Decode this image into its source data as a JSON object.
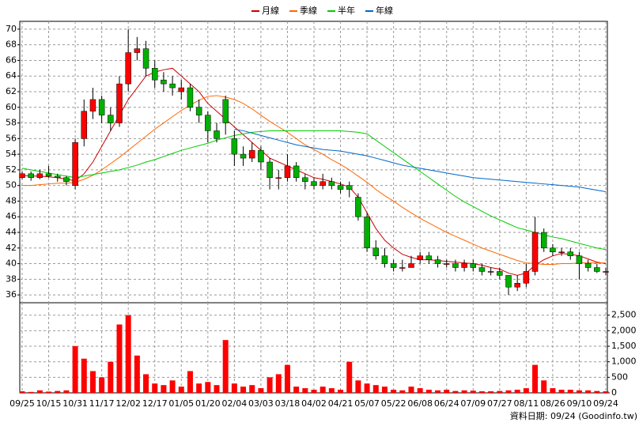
{
  "chart_data": [
    {
      "type": "candlestick",
      "categories": [
        "09/25",
        null,
        null,
        "10/15",
        null,
        null,
        "10/31",
        null,
        null,
        "11/17",
        null,
        null,
        "12/02",
        null,
        null,
        "12/17",
        null,
        null,
        "01/05",
        null,
        null,
        "01/20",
        null,
        null,
        "02/04",
        null,
        null,
        "03/03",
        null,
        null,
        "03/18",
        null,
        null,
        "04/02",
        null,
        null,
        "04/21",
        null,
        null,
        "05/07",
        null,
        null,
        "05/22",
        null,
        null,
        "06/08",
        null,
        null,
        "06/24",
        null,
        null,
        "07/09",
        null,
        null,
        "07/27",
        null,
        null,
        "08/11",
        null,
        null,
        "08/26",
        null,
        null,
        "09/10",
        null,
        null,
        "09/24"
      ],
      "open": [
        51,
        51.5,
        51,
        51.5,
        51.2,
        51,
        50,
        56,
        59.5,
        61,
        59,
        58,
        63,
        67,
        67.5,
        65,
        63.5,
        63,
        62,
        62.5,
        60,
        59,
        57,
        61,
        56,
        54,
        53.5,
        54.5,
        53,
        51,
        51,
        52.5,
        51,
        50.5,
        50,
        50.5,
        50,
        50,
        48.5,
        46,
        42,
        41,
        40,
        39.5,
        39.5,
        40.5,
        41,
        40.5,
        40,
        40,
        39.5,
        40,
        39.5,
        39,
        39,
        38.5,
        37,
        37.5,
        39,
        44,
        42,
        41.5,
        41.5,
        41,
        40,
        39.5,
        39
      ],
      "high": [
        51.8,
        51.8,
        52,
        52.5,
        51.5,
        51.2,
        56,
        61,
        62.5,
        61.5,
        60,
        64,
        70,
        69,
        68.5,
        66,
        64.5,
        64,
        63.5,
        63,
        61,
        59.5,
        58,
        61.5,
        57,
        55,
        55.5,
        55,
        53.5,
        52,
        54,
        53,
        51.5,
        51,
        51.5,
        51,
        50.5,
        50.5,
        49,
        46.5,
        43,
        42,
        40.5,
        40.5,
        41,
        41.5,
        41.5,
        41,
        40.5,
        40.5,
        40.5,
        40.5,
        40,
        39.5,
        39.5,
        38.5,
        38.5,
        40,
        46,
        44.5,
        42.5,
        42,
        42,
        41.5,
        40.5,
        40,
        39.5
      ],
      "low": [
        50.8,
        50.6,
        50.8,
        51,
        50.5,
        50,
        49.5,
        55,
        58.5,
        58,
        57,
        57.5,
        62,
        66,
        64,
        62.5,
        62,
        61.5,
        61,
        59.5,
        58,
        55.5,
        55.5,
        56.5,
        52.5,
        52.5,
        53,
        52,
        49.5,
        49.5,
        50.5,
        50.5,
        49.5,
        49.5,
        49.5,
        49.5,
        49,
        48.5,
        45.5,
        41.5,
        40.5,
        39.5,
        39,
        39,
        39.5,
        40,
        40,
        39.5,
        39.5,
        39,
        39,
        39,
        38.5,
        38.5,
        38,
        36,
        36.5,
        37,
        38.5,
        41.5,
        41,
        41,
        40.5,
        38,
        39,
        38.8,
        38.5
      ],
      "close": [
        51.5,
        51,
        51.5,
        51.2,
        51,
        50.5,
        55.5,
        59.5,
        61,
        59,
        58,
        63,
        67,
        67.5,
        65,
        63.5,
        63,
        62.5,
        62.5,
        60,
        59,
        57,
        56,
        58,
        54,
        53.5,
        54.5,
        53,
        51,
        51,
        52.5,
        51,
        50.5,
        50,
        50.5,
        50,
        49.5,
        49.5,
        46,
        42,
        41,
        40,
        39.5,
        39.5,
        40,
        41,
        40.5,
        40,
        40,
        39.5,
        40,
        39.5,
        39,
        39,
        38.5,
        37,
        37.5,
        39,
        44,
        42,
        41.5,
        41.5,
        41,
        40,
        39.5,
        39,
        39
      ],
      "up_color": "#ff0000",
      "down_color": "#00b000",
      "ylim": [
        35,
        71
      ],
      "yticks": [
        36,
        38,
        40,
        42,
        44,
        46,
        48,
        50,
        52,
        54,
        56,
        58,
        60,
        62,
        64,
        66,
        68,
        70
      ],
      "grid": true,
      "series": [
        {
          "name": "月線",
          "color": "#cc0000",
          "values": [
            51.3,
            51.2,
            51.2,
            51.1,
            51,
            50.8,
            50.6,
            51.5,
            53,
            55,
            57,
            59,
            61,
            62.5,
            64,
            64.5,
            64.8,
            65,
            64,
            63,
            62,
            60.5,
            59.5,
            58.5,
            57.5,
            56.5,
            55.5,
            54.5,
            53.5,
            53,
            52.5,
            52,
            51.5,
            51,
            50.8,
            50.5,
            50.2,
            49.8,
            48.5,
            46.5,
            44.5,
            43,
            42,
            41.2,
            40.8,
            40.5,
            40.5,
            40.4,
            40.3,
            40.2,
            40.1,
            40,
            39.8,
            39.5,
            39.3,
            38.8,
            38.5,
            38.8,
            39.8,
            40.5,
            41,
            41.3,
            41.2,
            41,
            40.6,
            40.2,
            40
          ]
        },
        {
          "name": "季線",
          "color": "#ff6600",
          "values": [
            50,
            50,
            50.1,
            50.2,
            50.3,
            50.3,
            50.4,
            50.8,
            51.3,
            52,
            52.8,
            53.6,
            54.5,
            55.4,
            56.3,
            57.2,
            58,
            58.8,
            59.6,
            60.3,
            60.9,
            61.4,
            61.5,
            61.3,
            61,
            60.5,
            59.8,
            59,
            58.2,
            57.5,
            56.8,
            56,
            55.2,
            54.6,
            54,
            53.3,
            52.7,
            52,
            51.2,
            50.4,
            49.5,
            48.7,
            48,
            47.2,
            46.5,
            45.8,
            45.2,
            44.6,
            44,
            43.5,
            43,
            42.5,
            42,
            41.6,
            41.2,
            40.8,
            40.4,
            40.1,
            40,
            39.9,
            39.9,
            40,
            40,
            40.1,
            40.1,
            40.1,
            40.1
          ]
        },
        {
          "name": "半年",
          "color": "#00cc00",
          "values": [
            52.2,
            52,
            51.8,
            51.6,
            51.4,
            51.2,
            51,
            51.2,
            51.4,
            51.6,
            51.8,
            52,
            52.3,
            52.6,
            53,
            53.3,
            53.7,
            54.1,
            54.5,
            54.8,
            55.1,
            55.4,
            55.8,
            56.1,
            56.4,
            56.6,
            56.8,
            56.9,
            57,
            57,
            57,
            57,
            57,
            57,
            57,
            57,
            57,
            56.9,
            56.8,
            56.6,
            55.8,
            55,
            54.2,
            53.4,
            52.6,
            51.8,
            51,
            50.2,
            49.4,
            48.6,
            47.9,
            47.3,
            46.7,
            46.1,
            45.6,
            45.1,
            44.6,
            44.3,
            44,
            43.7,
            43.4,
            43.2,
            42.9,
            42.6,
            42.3,
            42,
            41.8
          ]
        },
        {
          "name": "年線",
          "color": "#0066cc",
          "values": [
            null,
            null,
            null,
            null,
            null,
            null,
            null,
            null,
            null,
            null,
            null,
            null,
            null,
            null,
            null,
            null,
            null,
            null,
            null,
            null,
            null,
            null,
            null,
            null,
            57.2,
            57,
            56.7,
            56.4,
            56.1,
            55.8,
            55.5,
            55.2,
            55,
            54.8,
            54.6,
            54.5,
            54.4,
            54.2,
            54,
            53.8,
            53.5,
            53.2,
            52.9,
            52.6,
            52.4,
            52.2,
            52,
            51.8,
            51.6,
            51.4,
            51.2,
            51,
            50.9,
            50.8,
            50.7,
            50.6,
            50.5,
            50.4,
            50.3,
            50.2,
            50.1,
            50,
            49.9,
            49.8,
            49.6,
            49.4,
            49.2
          ]
        }
      ],
      "source": "資料日期: 09/24  (Goodinfo.tw)"
    },
    {
      "type": "bar",
      "values": [
        50,
        30,
        80,
        40,
        60,
        80,
        1500,
        1100,
        700,
        500,
        1000,
        2200,
        2500,
        1200,
        600,
        300,
        250,
        400,
        200,
        700,
        300,
        350,
        250,
        1700,
        300,
        200,
        250,
        150,
        500,
        600,
        900,
        200,
        150,
        100,
        200,
        150,
        100,
        1000,
        400,
        300,
        250,
        200,
        100,
        80,
        200,
        150,
        100,
        80,
        100,
        60,
        80,
        70,
        50,
        50,
        60,
        80,
        100,
        150,
        900,
        400,
        150,
        100,
        100,
        80,
        80,
        60,
        50
      ],
      "color": "#ff0000",
      "ylim": [
        0,
        2900
      ],
      "yticks": [
        0,
        500,
        {
          "value": 1000,
          "label": "1,000"
        },
        {
          "value": 1500,
          "label": "1,500"
        },
        {
          "value": 2000,
          "label": "2,000"
        },
        {
          "value": 2500,
          "label": "2,500"
        }
      ],
      "grid": true
    }
  ]
}
